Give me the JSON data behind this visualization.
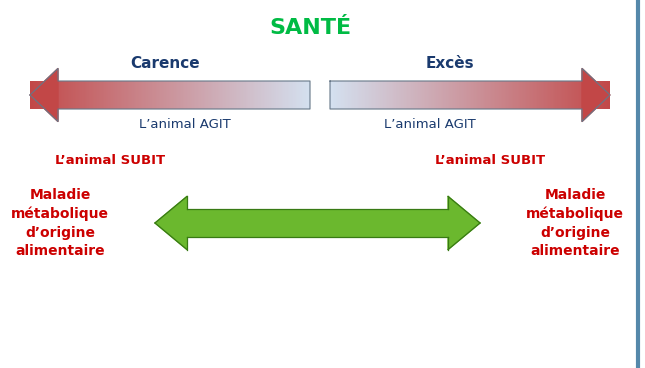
{
  "title": "SANTÉ",
  "title_color": "#00bb44",
  "title_fontsize": 16,
  "carence_label": "Carence",
  "exces_label": "Excès",
  "label_color": "#1a3a6e",
  "label_fontsize": 11,
  "agit_left": "L’animal AGIT",
  "agit_right": "L’animal AGIT",
  "agit_color": "#1a3a6e",
  "agit_fontsize": 9.5,
  "subit_left": "L’animal SUBIT",
  "subit_right": "L’animal SUBIT",
  "subit_color": "#cc0000",
  "subit_fontsize": 9.5,
  "maladie_left": "Maladie\nmétabolique\nd’origine\nalimentaire",
  "maladie_right": "Maladie\nmétabolique\nd’origine\nalimentaire",
  "maladie_color": "#cc0000",
  "maladie_fontsize": 10,
  "bg_color": "#ffffff",
  "border_color": "#5588aa"
}
